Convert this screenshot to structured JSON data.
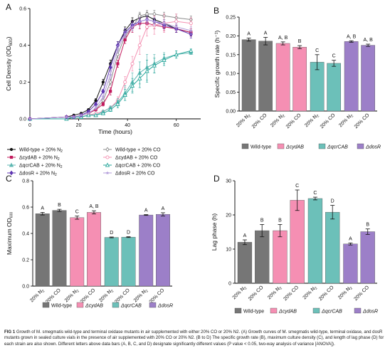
{
  "panels": {
    "a": "A",
    "b": "B",
    "c": "C",
    "d": "D"
  },
  "chart_data": [
    {
      "panel": "A",
      "type": "line",
      "xlabel": "Time (hours)",
      "ylabel": "Cell Density (OD600)",
      "ylabel_main": "Cell Density (OD",
      "ylabel_sub": "600",
      "ylabel_end": ")",
      "xlim": [
        0,
        70
      ],
      "ylim": [
        0,
        0.6
      ],
      "xticks": [
        "0",
        "20",
        "40",
        "60"
      ],
      "yticks": [
        "0.0",
        "0.2",
        "0.4",
        "0.6"
      ],
      "series": [
        {
          "name": "Wild-type + 20% N2",
          "color": "#111111",
          "marker": "circle-filled",
          "x": [
            0,
            15,
            18,
            21,
            24,
            27,
            30,
            33,
            36,
            39,
            42,
            45,
            48,
            51,
            55,
            60,
            66
          ],
          "y": [
            0.0,
            0.01,
            0.02,
            0.03,
            0.05,
            0.1,
            0.2,
            0.3,
            0.4,
            0.48,
            0.53,
            0.55,
            0.56,
            0.54,
            0.52,
            0.49,
            0.47
          ],
          "err": [
            0,
            0,
            0,
            0,
            0,
            0.01,
            0.015,
            0.02,
            0.02,
            0.02,
            0.02,
            0.02,
            0.02,
            0.02,
            0.02,
            0.02,
            0.02
          ]
        },
        {
          "name": "Wild-type + 20% CO",
          "color": "#8c8c8c",
          "marker": "diamond-open",
          "x": [
            0,
            15,
            18,
            21,
            24,
            27,
            30,
            33,
            36,
            39,
            42,
            45,
            48,
            51,
            55,
            60,
            66
          ],
          "y": [
            0.0,
            0.01,
            0.01,
            0.02,
            0.03,
            0.05,
            0.1,
            0.2,
            0.35,
            0.45,
            0.5,
            0.56,
            0.57,
            0.57,
            0.56,
            0.55,
            0.54
          ],
          "err": [
            0,
            0,
            0,
            0,
            0,
            0,
            0.01,
            0.015,
            0.02,
            0.02,
            0.02,
            0.02,
            0.02,
            0.02,
            0.02,
            0.02,
            0.02
          ]
        },
        {
          "name": "ΔcydAB + 20% N2",
          "color": "#c2185b",
          "marker": "square-filled",
          "x": [
            0,
            15,
            18,
            21,
            24,
            27,
            30,
            33,
            36,
            39,
            42,
            45,
            48,
            51,
            55,
            60,
            66
          ],
          "y": [
            0.0,
            0.01,
            0.01,
            0.02,
            0.03,
            0.05,
            0.08,
            0.15,
            0.3,
            0.43,
            0.5,
            0.52,
            0.52,
            0.51,
            0.5,
            0.49,
            0.47
          ],
          "err": [
            0,
            0,
            0,
            0,
            0,
            0,
            0.01,
            0.02,
            0.02,
            0.02,
            0.03,
            0.03,
            0.03,
            0.02,
            0.02,
            0.02,
            0.02
          ]
        },
        {
          "name": "ΔcydAB + 20% CO",
          "color": "#f48fb1",
          "marker": "circle-open",
          "x": [
            0,
            15,
            18,
            21,
            24,
            27,
            30,
            33,
            36,
            39,
            42,
            45,
            48,
            51,
            55,
            60,
            66
          ],
          "y": [
            0.0,
            0.0,
            0.01,
            0.01,
            0.02,
            0.03,
            0.04,
            0.06,
            0.1,
            0.2,
            0.3,
            0.4,
            0.5,
            0.51,
            0.52,
            0.53,
            0.52
          ],
          "err": [
            0,
            0,
            0,
            0,
            0,
            0,
            0,
            0.01,
            0.02,
            0.03,
            0.04,
            0.05,
            0.05,
            0.05,
            0.05,
            0.04,
            0.03
          ]
        },
        {
          "name": "ΔqcrCAB + 20% N2",
          "color": "#5fb8b3",
          "marker": "triangle-filled",
          "x": [
            0,
            15,
            18,
            21,
            24,
            27,
            30,
            33,
            36,
            39,
            42,
            45,
            48,
            51,
            55,
            60,
            66
          ],
          "y": [
            0.0,
            0.0,
            0.01,
            0.01,
            0.02,
            0.02,
            0.04,
            0.06,
            0.09,
            0.14,
            0.2,
            0.25,
            0.28,
            0.3,
            0.33,
            0.35,
            0.36
          ],
          "err": [
            0,
            0,
            0,
            0,
            0,
            0,
            0,
            0.01,
            0.02,
            0.04,
            0.05,
            0.06,
            0.07,
            0.05,
            0.03,
            0.02,
            0.01
          ]
        },
        {
          "name": "ΔqcrCAB + 20% CO",
          "color": "#26a69a",
          "marker": "triangle-open",
          "x": [
            0,
            15,
            18,
            21,
            24,
            27,
            30,
            33,
            36,
            39,
            42,
            45,
            48,
            51,
            55,
            60,
            66
          ],
          "y": [
            0.0,
            0.0,
            0.01,
            0.01,
            0.02,
            0.02,
            0.03,
            0.05,
            0.08,
            0.13,
            0.18,
            0.22,
            0.26,
            0.29,
            0.32,
            0.35,
            0.37
          ],
          "err": [
            0,
            0,
            0,
            0,
            0,
            0,
            0,
            0.01,
            0.02,
            0.03,
            0.04,
            0.05,
            0.06,
            0.04,
            0.03,
            0.02,
            0.01
          ]
        },
        {
          "name": "ΔdosR + 20% N2",
          "color": "#5e35b1",
          "marker": "diamond-filled",
          "x": [
            0,
            15,
            18,
            21,
            24,
            27,
            30,
            33,
            36,
            39,
            42,
            45,
            48,
            51,
            55,
            60,
            66
          ],
          "y": [
            0.0,
            0.01,
            0.01,
            0.02,
            0.04,
            0.08,
            0.15,
            0.28,
            0.4,
            0.47,
            0.51,
            0.53,
            0.54,
            0.53,
            0.51,
            0.49,
            0.46
          ],
          "err": [
            0,
            0,
            0,
            0,
            0,
            0.01,
            0.01,
            0.02,
            0.02,
            0.02,
            0.02,
            0.02,
            0.02,
            0.02,
            0.02,
            0.02,
            0.02
          ]
        },
        {
          "name": "ΔdosR + 20% CO",
          "color": "#b39ddb",
          "marker": "star",
          "x": [
            0,
            15,
            18,
            21,
            24,
            27,
            30,
            33,
            36,
            39,
            42,
            45,
            48,
            51,
            55,
            60,
            66
          ],
          "y": [
            0.0,
            0.01,
            0.01,
            0.02,
            0.03,
            0.06,
            0.12,
            0.24,
            0.38,
            0.46,
            0.5,
            0.53,
            0.54,
            0.53,
            0.52,
            0.5,
            0.48
          ],
          "err": [
            0,
            0,
            0,
            0,
            0,
            0.01,
            0.01,
            0.02,
            0.02,
            0.02,
            0.02,
            0.02,
            0.02,
            0.02,
            0.02,
            0.02,
            0.02
          ]
        }
      ]
    },
    {
      "panel": "B",
      "type": "bar",
      "ylabel": "Specific growth rate (h⁻¹)",
      "ylim": [
        0,
        0.25
      ],
      "yticks": [
        "0.00",
        "0.05",
        "0.10",
        "0.15",
        "0.20",
        "0.25"
      ],
      "categories": [
        "20% N2",
        "20% CO",
        "20% N2",
        "20% CO",
        "20% N2",
        "20% CO",
        "20% N2",
        "20% CO"
      ],
      "values": [
        0.19,
        0.186,
        0.18,
        0.17,
        0.13,
        0.127,
        0.185,
        0.175
      ],
      "errors": [
        0.004,
        0.01,
        0.004,
        0.004,
        0.02,
        0.008,
        0.002,
        0.003
      ],
      "letters": [
        "A",
        "A",
        "A, B",
        "B",
        "C",
        "C",
        "A, B",
        "A, B"
      ]
    },
    {
      "panel": "C",
      "type": "bar",
      "ylabel": "Maximum OD600",
      "ylim": [
        0,
        0.8
      ],
      "yticks": [
        "0.0",
        "0.2",
        "0.4",
        "0.6",
        "0.8"
      ],
      "categories": [
        "20% N2",
        "20% CO",
        "20% N2",
        "20% CO",
        "20% N2",
        "20% CO",
        "20% N2",
        "20% CO"
      ],
      "values": [
        0.55,
        0.575,
        0.52,
        0.56,
        0.37,
        0.372,
        0.54,
        0.545
      ],
      "errors": [
        0.01,
        0.008,
        0.012,
        0.012,
        0.003,
        0.003,
        0.003,
        0.012
      ],
      "letters": [
        "A",
        "B",
        "C",
        "A, B",
        "D",
        "D",
        "A",
        "A"
      ]
    },
    {
      "panel": "D",
      "type": "bar",
      "ylabel": "Lag phase (h)",
      "ylim": [
        0,
        30
      ],
      "yticks": [
        "0",
        "10",
        "20",
        "30"
      ],
      "categories": [
        "20% N2",
        "20% CO",
        "20% N2",
        "20% CO",
        "20% N2",
        "20% CO",
        "20% N2",
        "20% CO"
      ],
      "values": [
        12,
        15.4,
        15.4,
        24.3,
        24.8,
        20.8,
        11.5,
        15.1
      ],
      "errors": [
        0.7,
        1.8,
        1.8,
        3.0,
        0.4,
        2.0,
        0.3,
        0.8
      ],
      "letters": [
        "A",
        "B",
        "B",
        "C",
        "C",
        "D",
        "A",
        "B"
      ]
    }
  ],
  "strains": [
    {
      "name": "Wild-type",
      "color": "#767676"
    },
    {
      "name": "ΔcydAB",
      "color": "#f58fb3"
    },
    {
      "name": "ΔqcrCAB",
      "color": "#6cc0b9"
    },
    {
      "name": "ΔdosR",
      "color": "#9c7fc8"
    }
  ],
  "caption": {
    "fig_label": "FIG 1",
    "text": "Growth of M. smegmatis wild-type and terminal oxidase mutants in air supplemented with either 20% CO or 20% N2. (A) Growth curves of M. smegmatis wild-type, terminal oxidase, and dosR mutants grown in sealed culture vials in the presence of air supplemented with 20% CO or 20% N2. (B to D) The specific growth rate (B), maximum culture density (C), and length of lag phase (D) for each strain are also shown. Different letters above data bars (A, B, C, and D) designate significantly different values (P value < 0.05, two-way analysis of variance [ANOVA])."
  }
}
